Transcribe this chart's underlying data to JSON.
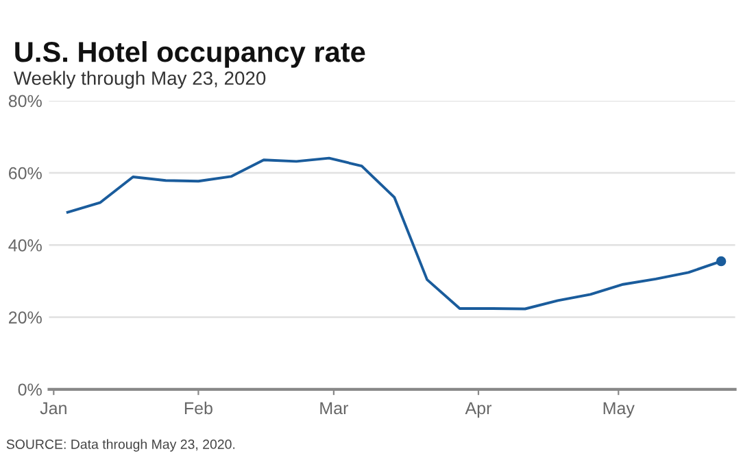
{
  "chart_data": {
    "type": "line",
    "title": "U.S. Hotel occupancy rate",
    "subtitle": "Weekly through May 23, 2020",
    "annotations": [
      "SOURCE: Data through May 23, 2020."
    ],
    "x": [
      "2020-01-04",
      "2020-01-11",
      "2020-01-18",
      "2020-01-25",
      "2020-02-01",
      "2020-02-08",
      "2020-02-15",
      "2020-02-22",
      "2020-02-29",
      "2020-03-07",
      "2020-03-14",
      "2020-03-21",
      "2020-03-28",
      "2020-04-04",
      "2020-04-11",
      "2020-04-18",
      "2020-04-25",
      "2020-05-02",
      "2020-05-09",
      "2020-05-16",
      "2020-05-23"
    ],
    "series": [
      {
        "color": "#1a5c9c",
        "marker": "none",
        "values": [
          49.1,
          51.8,
          58.9,
          57.9,
          57.7,
          59.0,
          63.6,
          63.2,
          64.1,
          61.9,
          53.2,
          30.4,
          22.4,
          22.4,
          22.3,
          24.6,
          26.3,
          29.1,
          30.6,
          32.4,
          35.5
        ]
      },
      {
        "type": "scatter",
        "marker": "circle",
        "color": "#1a5c9c",
        "x": [
          "2020-05-23"
        ],
        "values": [
          35.5
        ]
      }
    ],
    "ylim": [
      0,
      80
    ],
    "yticks": [
      {
        "value": 0,
        "label": "0%"
      },
      {
        "value": 20,
        "label": "20%"
      },
      {
        "value": 40,
        "label": "40%"
      },
      {
        "value": 60,
        "label": "60%"
      },
      {
        "value": 80,
        "label": "80%"
      }
    ],
    "xlim": [
      "2019-12-31",
      "2020-05-26"
    ],
    "xticks": [
      {
        "value": "2020-01-01",
        "label": "Jan"
      },
      {
        "value": "2020-02-01",
        "label": "Feb"
      },
      {
        "value": "2020-03-01",
        "label": "Mar"
      },
      {
        "value": "2020-04-01",
        "label": "Apr"
      },
      {
        "value": "2020-05-01",
        "label": "May"
      }
    ],
    "grid": "y",
    "line_style": "solid"
  }
}
